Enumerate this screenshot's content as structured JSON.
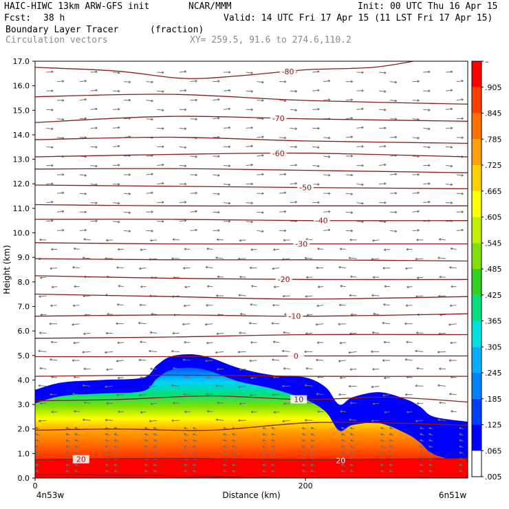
{
  "header": {
    "model": "HAIC-HIWC 13km ARW-GFS init",
    "org": "NCAR/MMM",
    "init": "Init: 00 UTC Thu 16 Apr 15",
    "fcst_label": "Fcst:",
    "fcst_value": "38 h",
    "valid": "Valid: 14 UTC Fri 17 Apr 15 (11 LST Fri 17 Apr 15)",
    "field_name": "Boundary Layer Tracer",
    "field_units": "(fraction)",
    "overlay_name": "Circulation vectors",
    "cross_section": "XY= 259.5, 91.6 to 274.6,110.2"
  },
  "colors": {
    "tracer_scale": [
      "#ffffff",
      "#0000ff",
      "#0040ff",
      "#0080ff",
      "#00b0ff",
      "#00e0e0",
      "#00e080",
      "#30d020",
      "#80e000",
      "#c0f000",
      "#ffff00",
      "#ffd000",
      "#ffa000",
      "#ff7000",
      "#ff4000",
      "#ff0000"
    ],
    "contour": "#8b1a1a",
    "vector": "#707070"
  },
  "chart_data": {
    "type": "heatmap",
    "title": "Boundary Layer Tracer",
    "units": "(fraction)",
    "xlabel": "Distance (km)",
    "ylabel": "Height (km)",
    "xlim": [
      0,
      320
    ],
    "ylim": [
      0,
      17
    ],
    "x_ticks": [
      {
        "value": 0,
        "label": "0"
      },
      {
        "value": 200,
        "label": "200"
      }
    ],
    "x_endpoint_labels": {
      "left": "4n53w",
      "right": "6n51w"
    },
    "y_ticks": [
      "0.0",
      "1.0",
      "2.0",
      "3.0",
      "4.0",
      "5.0",
      "6.0",
      "7.0",
      "8.0",
      "9.0",
      "10.0",
      "11.0",
      "12.0",
      "13.0",
      "14.0",
      "15.0",
      "16.0",
      "17.0"
    ],
    "colorbar_labels": [
      ".005",
      ".065",
      ".125",
      ".185",
      ".245",
      ".305",
      ".365",
      ".425",
      ".485",
      ".545",
      ".605",
      ".665",
      ".725",
      ".785",
      ".845",
      ".905",
      "–"
    ],
    "tracer_top_km": [
      [
        0,
        3.6
      ],
      [
        20,
        3.9
      ],
      [
        50,
        4.0
      ],
      [
        80,
        4.1
      ],
      [
        90,
        4.6
      ],
      [
        100,
        4.95
      ],
      [
        115,
        5.05
      ],
      [
        130,
        4.9
      ],
      [
        150,
        4.5
      ],
      [
        175,
        4.2
      ],
      [
        200,
        4.1
      ],
      [
        215,
        3.7
      ],
      [
        225,
        3.0
      ],
      [
        235,
        3.3
      ],
      [
        255,
        3.5
      ],
      [
        275,
        3.2
      ],
      [
        285,
        2.9
      ],
      [
        295,
        2.5
      ],
      [
        320,
        2.3
      ]
    ],
    "isotherm_labels": [
      "-80",
      "-70",
      "-60",
      "-50",
      "-40",
      "-30",
      "-20",
      "-10",
      "0",
      "10",
      "20"
    ],
    "isotherms": [
      {
        "label": "-80",
        "label_x": 187,
        "points": [
          [
            0,
            16.75
          ],
          [
            60,
            16.6
          ],
          [
            110,
            16.3
          ],
          [
            150,
            16.4
          ],
          [
            200,
            16.65
          ],
          [
            250,
            16.75
          ],
          [
            285,
            17.05
          ]
        ]
      },
      {
        "label": "",
        "label_x": null,
        "points": [
          [
            0,
            15.55
          ],
          [
            100,
            15.65
          ],
          [
            200,
            15.4
          ],
          [
            320,
            15.25
          ]
        ]
      },
      {
        "label": "-70",
        "label_x": 180,
        "points": [
          [
            0,
            14.5
          ],
          [
            100,
            14.75
          ],
          [
            200,
            14.65
          ],
          [
            320,
            14.55
          ]
        ]
      },
      {
        "label": "",
        "label_x": null,
        "points": [
          [
            0,
            13.8
          ],
          [
            100,
            13.9
          ],
          [
            200,
            13.75
          ],
          [
            320,
            13.65
          ]
        ]
      },
      {
        "label": "-60",
        "label_x": 180,
        "points": [
          [
            0,
            13.1
          ],
          [
            100,
            13.2
          ],
          [
            200,
            13.25
          ],
          [
            320,
            13.1
          ]
        ]
      },
      {
        "label": "",
        "label_x": null,
        "points": [
          [
            0,
            12.6
          ],
          [
            100,
            12.62
          ],
          [
            200,
            12.55
          ],
          [
            320,
            12.45
          ]
        ]
      },
      {
        "label": "-50",
        "label_x": 200,
        "points": [
          [
            0,
            11.95
          ],
          [
            100,
            11.9
          ],
          [
            200,
            11.85
          ],
          [
            320,
            11.8
          ]
        ]
      },
      {
        "label": "",
        "label_x": null,
        "points": [
          [
            0,
            11.15
          ],
          [
            100,
            11.1
          ],
          [
            200,
            11.1
          ],
          [
            320,
            11.1
          ]
        ]
      },
      {
        "label": "-40",
        "label_x": 212,
        "points": [
          [
            0,
            10.55
          ],
          [
            100,
            10.55
          ],
          [
            200,
            10.5
          ],
          [
            320,
            10.5
          ]
        ]
      },
      {
        "label": "-30",
        "label_x": 197,
        "points": [
          [
            0,
            9.6
          ],
          [
            100,
            9.55
          ],
          [
            200,
            9.55
          ],
          [
            320,
            9.55
          ]
        ]
      },
      {
        "label": "",
        "label_x": null,
        "points": [
          [
            0,
            8.95
          ],
          [
            100,
            8.9
          ],
          [
            200,
            8.9
          ],
          [
            320,
            8.85
          ]
        ]
      },
      {
        "label": "-20",
        "label_x": 184,
        "points": [
          [
            0,
            8.25
          ],
          [
            100,
            8.15
          ],
          [
            200,
            8.1
          ],
          [
            320,
            8.1
          ]
        ]
      },
      {
        "label": "",
        "label_x": null,
        "points": [
          [
            0,
            7.5
          ],
          [
            100,
            7.4
          ],
          [
            200,
            7.3
          ],
          [
            320,
            7.4
          ]
        ]
      },
      {
        "label": "-10",
        "label_x": 192,
        "points": [
          [
            0,
            6.6
          ],
          [
            100,
            6.65
          ],
          [
            200,
            6.6
          ],
          [
            320,
            6.7
          ]
        ]
      },
      {
        "label": "",
        "label_x": null,
        "points": [
          [
            0,
            5.7
          ],
          [
            100,
            5.75
          ],
          [
            200,
            5.85
          ],
          [
            320,
            5.85
          ]
        ]
      },
      {
        "label": "0",
        "label_x": 193,
        "points": [
          [
            0,
            4.95
          ],
          [
            100,
            4.95
          ],
          [
            200,
            4.98
          ],
          [
            320,
            4.98
          ]
        ]
      },
      {
        "label": "",
        "label_x": null,
        "points": [
          [
            0,
            4.15
          ],
          [
            100,
            4.2
          ],
          [
            200,
            4.15
          ],
          [
            320,
            4.15
          ]
        ]
      },
      {
        "label": "10",
        "label_x": 195,
        "points": [
          [
            0,
            3.15
          ],
          [
            60,
            3.2
          ],
          [
            130,
            3.35
          ],
          [
            200,
            3.2
          ],
          [
            260,
            3.3
          ],
          [
            320,
            3.1
          ]
        ]
      },
      {
        "label": "",
        "label_x": null,
        "points": [
          [
            0,
            1.95
          ],
          [
            60,
            2.0
          ],
          [
            130,
            1.95
          ],
          [
            200,
            2.25
          ],
          [
            260,
            2.25
          ],
          [
            320,
            2.15
          ]
        ]
      },
      {
        "label": "20",
        "label_x": 34,
        "points": [
          [
            0,
            0.75
          ],
          [
            100,
            0.8
          ],
          [
            200,
            0.75
          ],
          [
            320,
            0.8
          ]
        ]
      },
      {
        "label": "",
        "label_x": null,
        "points": [
          [
            0,
            0.15
          ],
          [
            100,
            0.1
          ],
          [
            200,
            0.0
          ],
          [
            320,
            0.0
          ]
        ]
      }
    ],
    "isotherm_fragment_label": {
      "label": "20",
      "x": 226,
      "y": 0.72
    }
  }
}
